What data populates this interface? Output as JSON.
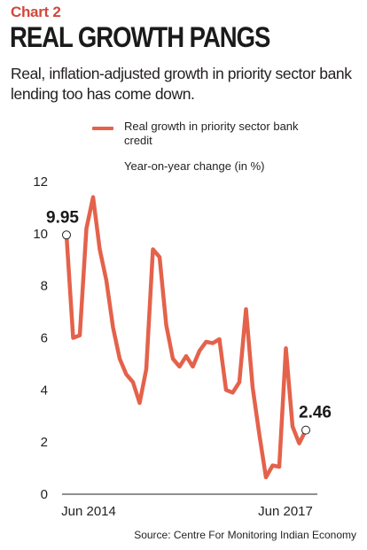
{
  "header": {
    "kicker": "Chart 2",
    "title": "REAL GROWTH PANGS",
    "subtitle": "Real, inflation-adjusted growth in priority sector bank lending too has come down."
  },
  "legend": {
    "label": "Real growth in priority sector bank credit"
  },
  "unit_note": "Year-on-year change (in %)",
  "source": "Source: Centre For Monitoring Indian Economy",
  "colors": {
    "line": "#e4624b",
    "axis": "#231f20",
    "kicker": "#d0483b"
  },
  "chart_data": {
    "type": "line",
    "title": "REAL GROWTH PANGS",
    "ylabel": "Year-on-year change (in %)",
    "ylim": [
      0,
      12
    ],
    "yticks": [
      0,
      2,
      4,
      6,
      8,
      10,
      12
    ],
    "x_tick_labels": [
      "Jun 2014",
      "Jun 2017"
    ],
    "grid": false,
    "legend_position": "top",
    "series": [
      {
        "name": "Real growth in priority sector bank credit",
        "values": [
          9.95,
          6.0,
          6.1,
          10.2,
          11.4,
          9.4,
          8.2,
          6.4,
          5.2,
          4.6,
          4.3,
          3.5,
          4.8,
          9.4,
          9.1,
          6.5,
          5.2,
          4.9,
          5.3,
          4.9,
          5.5,
          5.85,
          5.8,
          5.95,
          4.0,
          3.9,
          4.3,
          7.1,
          4.1,
          2.3,
          0.65,
          1.1,
          1.05,
          5.6,
          2.6,
          1.95,
          2.46
        ]
      }
    ],
    "annotations": [
      {
        "label": "9.95",
        "value": 9.95,
        "at": "first"
      },
      {
        "label": "2.46",
        "value": 2.46,
        "at": "last"
      }
    ]
  }
}
